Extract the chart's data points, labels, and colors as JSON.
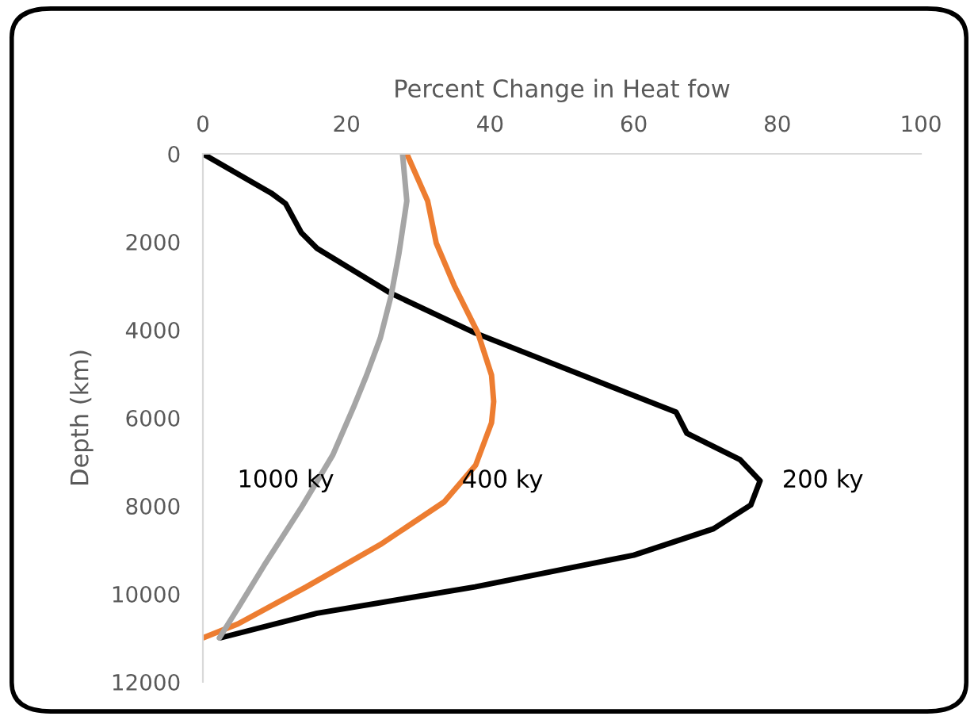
{
  "chart_data": {
    "type": "line",
    "xlabel": "Percent Change in Heat fow",
    "ylabel": "Depth (km)",
    "xlim": [
      0,
      100
    ],
    "xticks": [
      0,
      20,
      40,
      60,
      80,
      100
    ],
    "ylim": [
      12000,
      0
    ],
    "yticks": [
      0,
      2000,
      4000,
      6000,
      8000,
      10000,
      12000
    ],
    "grid": false,
    "marker": "none",
    "line_style": "solid",
    "series": [
      {
        "name": "200 ky",
        "color": "#000000",
        "x": [
          0,
          9.5,
          11.5,
          13.7,
          15.9,
          26.2,
          37.9,
          65.9,
          67.4,
          74.8,
          77.6,
          76.3,
          71.1,
          60.0,
          37.9,
          15.9,
          2.4
        ],
        "values": [
          0,
          890,
          1130,
          1790,
          2150,
          3170,
          4070,
          5870,
          6350,
          6950,
          7430,
          7980,
          8520,
          9120,
          9840,
          10440,
          11000
        ]
      },
      {
        "name": "400 ky",
        "color": "#ed7d31",
        "x": [
          28.4,
          31.3,
          32.5,
          35.0,
          38.3,
          40.2,
          40.5,
          40.2,
          38.0,
          33.6,
          24.7,
          14.4,
          4.9,
          0
        ],
        "values": [
          0,
          1070,
          2030,
          2990,
          4070,
          5030,
          5630,
          6110,
          7070,
          7910,
          8880,
          9840,
          10680,
          11000
        ]
      },
      {
        "name": "1000 ky",
        "color": "#a5a5a5",
        "x": [
          27.8,
          28.4,
          27.3,
          26.2,
          24.7,
          22.8,
          21.0,
          18.1,
          13.7,
          8.5,
          4.9,
          2.3
        ],
        "values": [
          0,
          1070,
          2270,
          3230,
          4190,
          5030,
          5750,
          6840,
          8040,
          9360,
          10320,
          11000
        ]
      }
    ]
  }
}
